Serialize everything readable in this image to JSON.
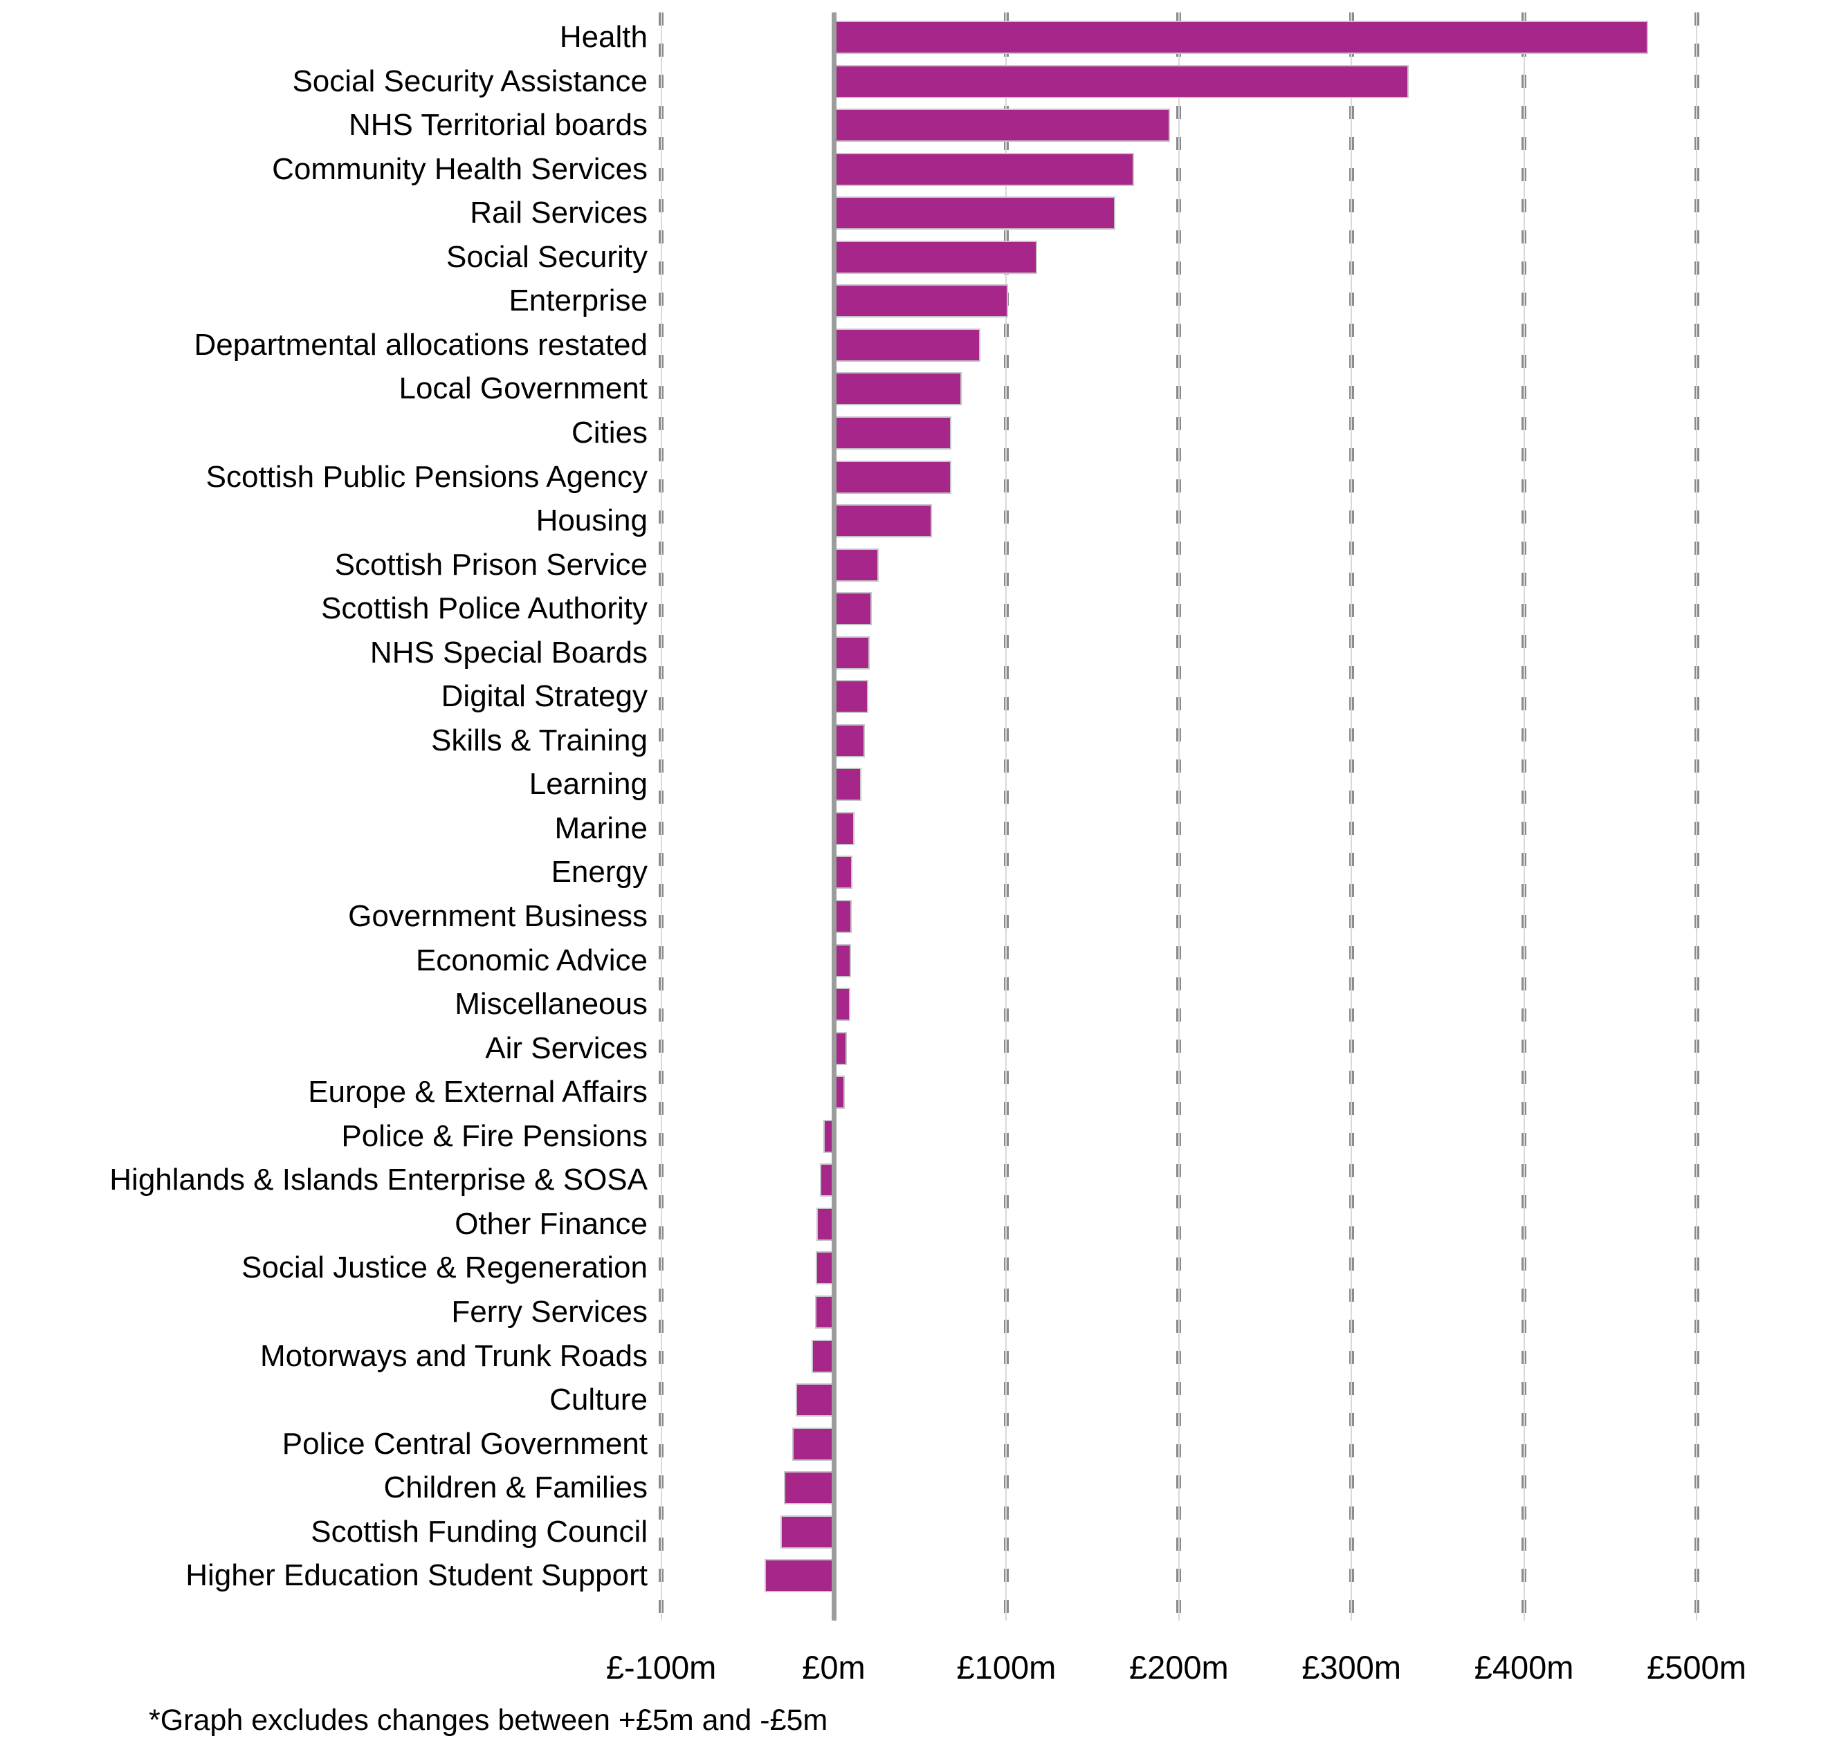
{
  "chart_data": {
    "type": "bar",
    "orientation": "horizontal",
    "title": "",
    "xlabel": "",
    "ylabel": "",
    "unit": "£m",
    "xlim": [
      -100,
      500
    ],
    "grid": "vertical-dashed",
    "bar_color": "#a72689",
    "bar_border_color": "#c6c6c6",
    "gridline_dash_color": "#8c8c8c",
    "gridline_faint_color": "#d9d9d9",
    "zero_line_color": "#9c9c9c",
    "text_color": "#000000",
    "categories": [
      "Health",
      "Social Security Assistance",
      "NHS Territorial boards",
      "Community Health Services",
      "Rail Services",
      "Social Security",
      "Enterprise",
      "Departmental allocations restated",
      "Local Government",
      "Cities",
      "Scottish Public Pensions Agency",
      "Housing",
      "Scottish Prison Service",
      "Scottish Police Authority",
      "NHS Special Boards",
      "Digital Strategy",
      "Skills & Training",
      "Learning",
      "Marine",
      "Energy",
      "Government Business",
      "Economic Advice",
      "Miscellaneous",
      "Air Services",
      "Europe & External Affairs",
      "Police & Fire Pensions",
      "Highlands & Islands Enterprise & SOSA",
      "Other Finance",
      "Social Justice & Regeneration",
      "Ferry Services",
      "Motorways and Trunk Roads",
      "Culture",
      "Police Central Government",
      "Children & Families",
      "Scottish Funding Council",
      "Higher Education Student Support"
    ],
    "values": [
      472,
      333,
      195,
      174,
      163,
      118,
      101,
      85,
      74,
      68,
      68,
      57,
      26,
      22,
      21,
      20,
      18,
      16,
      12,
      11,
      10.5,
      10,
      9.5,
      7.5,
      6.5,
      -6,
      -8,
      -10,
      -10.5,
      -11,
      -13,
      -22,
      -24,
      -29,
      -31,
      -40
    ],
    "x_ticks": [
      {
        "value": -100,
        "label": "£-100m"
      },
      {
        "value": 0,
        "label": "£0m"
      },
      {
        "value": 100,
        "label": "£100m"
      },
      {
        "value": 200,
        "label": "£200m"
      },
      {
        "value": 300,
        "label": "£300m"
      },
      {
        "value": 400,
        "label": "£400m"
      },
      {
        "value": 500,
        "label": "£500m"
      }
    ],
    "footnote": "*Graph excludes changes between +£5m and -£5m"
  }
}
